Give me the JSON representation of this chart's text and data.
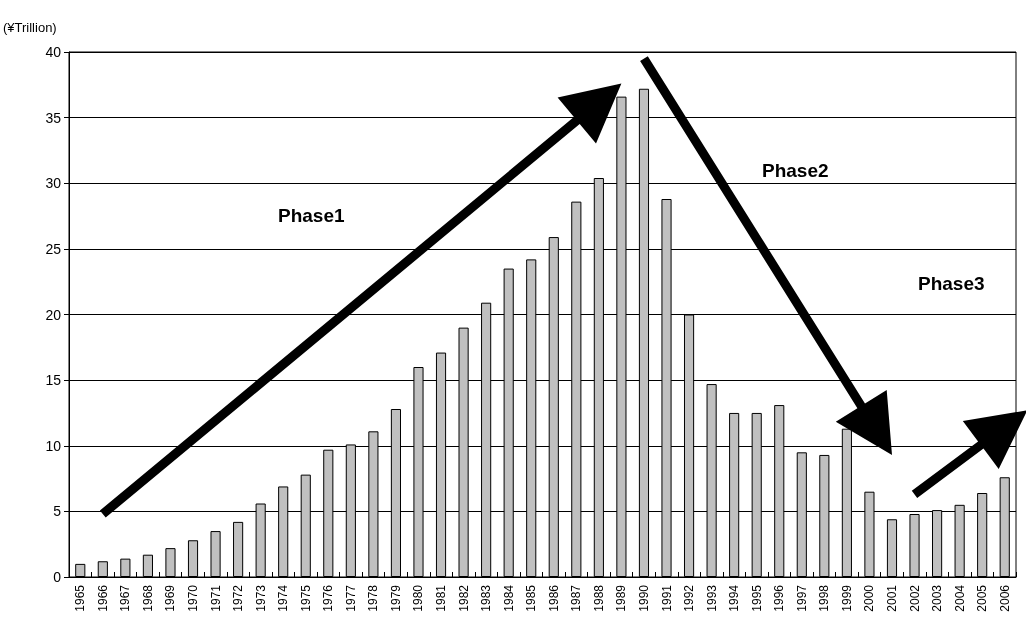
{
  "chart_data": {
    "type": "bar",
    "ylabel": "(¥Trillion)",
    "categories": [
      "1965",
      "1966",
      "1967",
      "1968",
      "1969",
      "1970",
      "1971",
      "1972",
      "1973",
      "1974",
      "1975",
      "1976",
      "1977",
      "1978",
      "1979",
      "1980",
      "1981",
      "1982",
      "1983",
      "1984",
      "1985",
      "1986",
      "1987",
      "1988",
      "1989",
      "1990",
      "1991",
      "1992",
      "1993",
      "1994",
      "1995",
      "1996",
      "1997",
      "1998",
      "1999",
      "2000",
      "2001",
      "2002",
      "2003",
      "2004",
      "2005",
      "2006"
    ],
    "values": [
      1.0,
      1.2,
      1.4,
      1.7,
      2.2,
      2.8,
      3.5,
      4.2,
      5.6,
      6.9,
      7.8,
      9.7,
      10.1,
      11.1,
      12.8,
      16.0,
      17.1,
      19.0,
      20.9,
      23.5,
      24.2,
      25.9,
      28.6,
      30.4,
      36.6,
      37.2,
      28.8,
      20.0,
      14.7,
      12.5,
      12.5,
      13.1,
      9.5,
      9.3,
      11.3,
      6.5,
      4.4,
      4.8,
      5.1,
      5.5,
      6.4,
      7.6
    ],
    "color": "#c0c0c0",
    "ylim": [
      0,
      40
    ],
    "yticks": [
      0,
      5,
      10,
      15,
      20,
      25,
      30,
      35,
      40
    ],
    "grid": "y",
    "annotations": [
      "Phase1",
      "Phase2",
      "Phase3"
    ]
  }
}
